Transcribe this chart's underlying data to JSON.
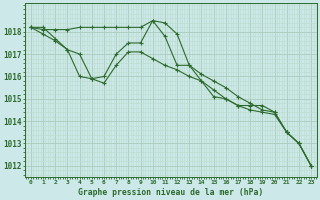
{
  "x": [
    0,
    1,
    2,
    3,
    4,
    5,
    6,
    7,
    8,
    9,
    10,
    11,
    12,
    13,
    14,
    15,
    16,
    17,
    18,
    19,
    20,
    21,
    22,
    23
  ],
  "line1": [
    1018.2,
    1018.1,
    1018.1,
    1018.1,
    1018.2,
    1018.2,
    1018.2,
    1018.2,
    1018.2,
    1018.2,
    1018.5,
    1018.4,
    1017.9,
    1016.5,
    1015.8,
    1015.1,
    1015.0,
    1014.7,
    1014.7,
    1014.7,
    1014.4,
    1013.5,
    1013.0,
    1012.0
  ],
  "line2": [
    1018.2,
    1017.9,
    1017.6,
    1017.2,
    1016.0,
    1015.9,
    1016.0,
    1017.0,
    1017.5,
    1017.5,
    1018.5,
    1017.8,
    1016.5,
    1016.5,
    1016.1,
    1015.8,
    1015.5,
    1015.1,
    1014.8,
    1014.5,
    1014.4,
    1013.5,
    1013.0,
    1012.0
  ],
  "line3": [
    1018.2,
    1018.2,
    1017.7,
    1017.2,
    1017.0,
    1015.9,
    1015.7,
    1016.5,
    1017.1,
    1017.1,
    1016.8,
    1016.5,
    1016.3,
    1016.0,
    1015.8,
    1015.4,
    1015.0,
    1014.7,
    1014.5,
    1014.4,
    1014.3,
    1013.5,
    1013.0,
    1012.0
  ],
  "line_color": "#2d6a2d",
  "bg_color": "#cce8e8",
  "grid_major_color": "#aaccbb",
  "grid_minor_color": "#bbddcc",
  "xlabel": "Graphe pression niveau de la mer (hPa)",
  "ylim": [
    1011.5,
    1019.3
  ],
  "yticks": [
    1012,
    1013,
    1014,
    1015,
    1016,
    1017,
    1018
  ],
  "xticks": [
    0,
    1,
    2,
    3,
    4,
    5,
    6,
    7,
    8,
    9,
    10,
    11,
    12,
    13,
    14,
    15,
    16,
    17,
    18,
    19,
    20,
    21,
    22,
    23
  ]
}
